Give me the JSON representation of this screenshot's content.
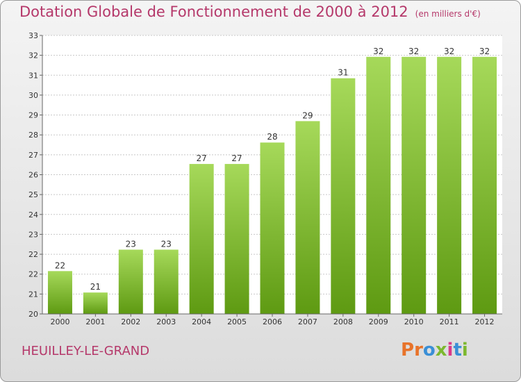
{
  "header": {
    "title": "Dotation Globale de Fonctionnement de 2000 à 2012",
    "subtitle": "(en milliers d'€)"
  },
  "footer": {
    "place": "HEUILLEY-LE-GRAND",
    "logo": "Proxiti"
  },
  "colors": {
    "title": "#b5386a",
    "bar_top": "#a6d95a",
    "bar_bottom": "#5e9a12",
    "grid": "#c8c8c8",
    "logo_letters": [
      "#e8732a",
      "#e8732a",
      "#3a8fd6",
      "#7cb82f",
      "#d93a8a",
      "#3a8fd6",
      "#7cb82f"
    ]
  },
  "chart_data": {
    "type": "bar",
    "title": "Dotation Globale de Fonctionnement de 2000 à 2012",
    "subtitle": "(en milliers d'€)",
    "categories": [
      "2000",
      "2001",
      "2002",
      "2003",
      "2004",
      "2005",
      "2006",
      "2007",
      "2008",
      "2009",
      "2010",
      "2011",
      "2012"
    ],
    "values": [
      22,
      21,
      23,
      23,
      27,
      27,
      28,
      29,
      31,
      32,
      32,
      32,
      32
    ],
    "value_labels": [
      "22",
      "21",
      "23",
      "23",
      "27",
      "27",
      "28",
      "29",
      "31",
      "32",
      "32",
      "32",
      "32"
    ],
    "y_tick_labels": [
      "20",
      "21",
      "22",
      "22",
      "23",
      "24",
      "25",
      "26",
      "27",
      "28",
      "29",
      "30",
      "31",
      "32",
      "33"
    ],
    "ylim": [
      20,
      33
    ],
    "grid": true,
    "legend": "none"
  }
}
